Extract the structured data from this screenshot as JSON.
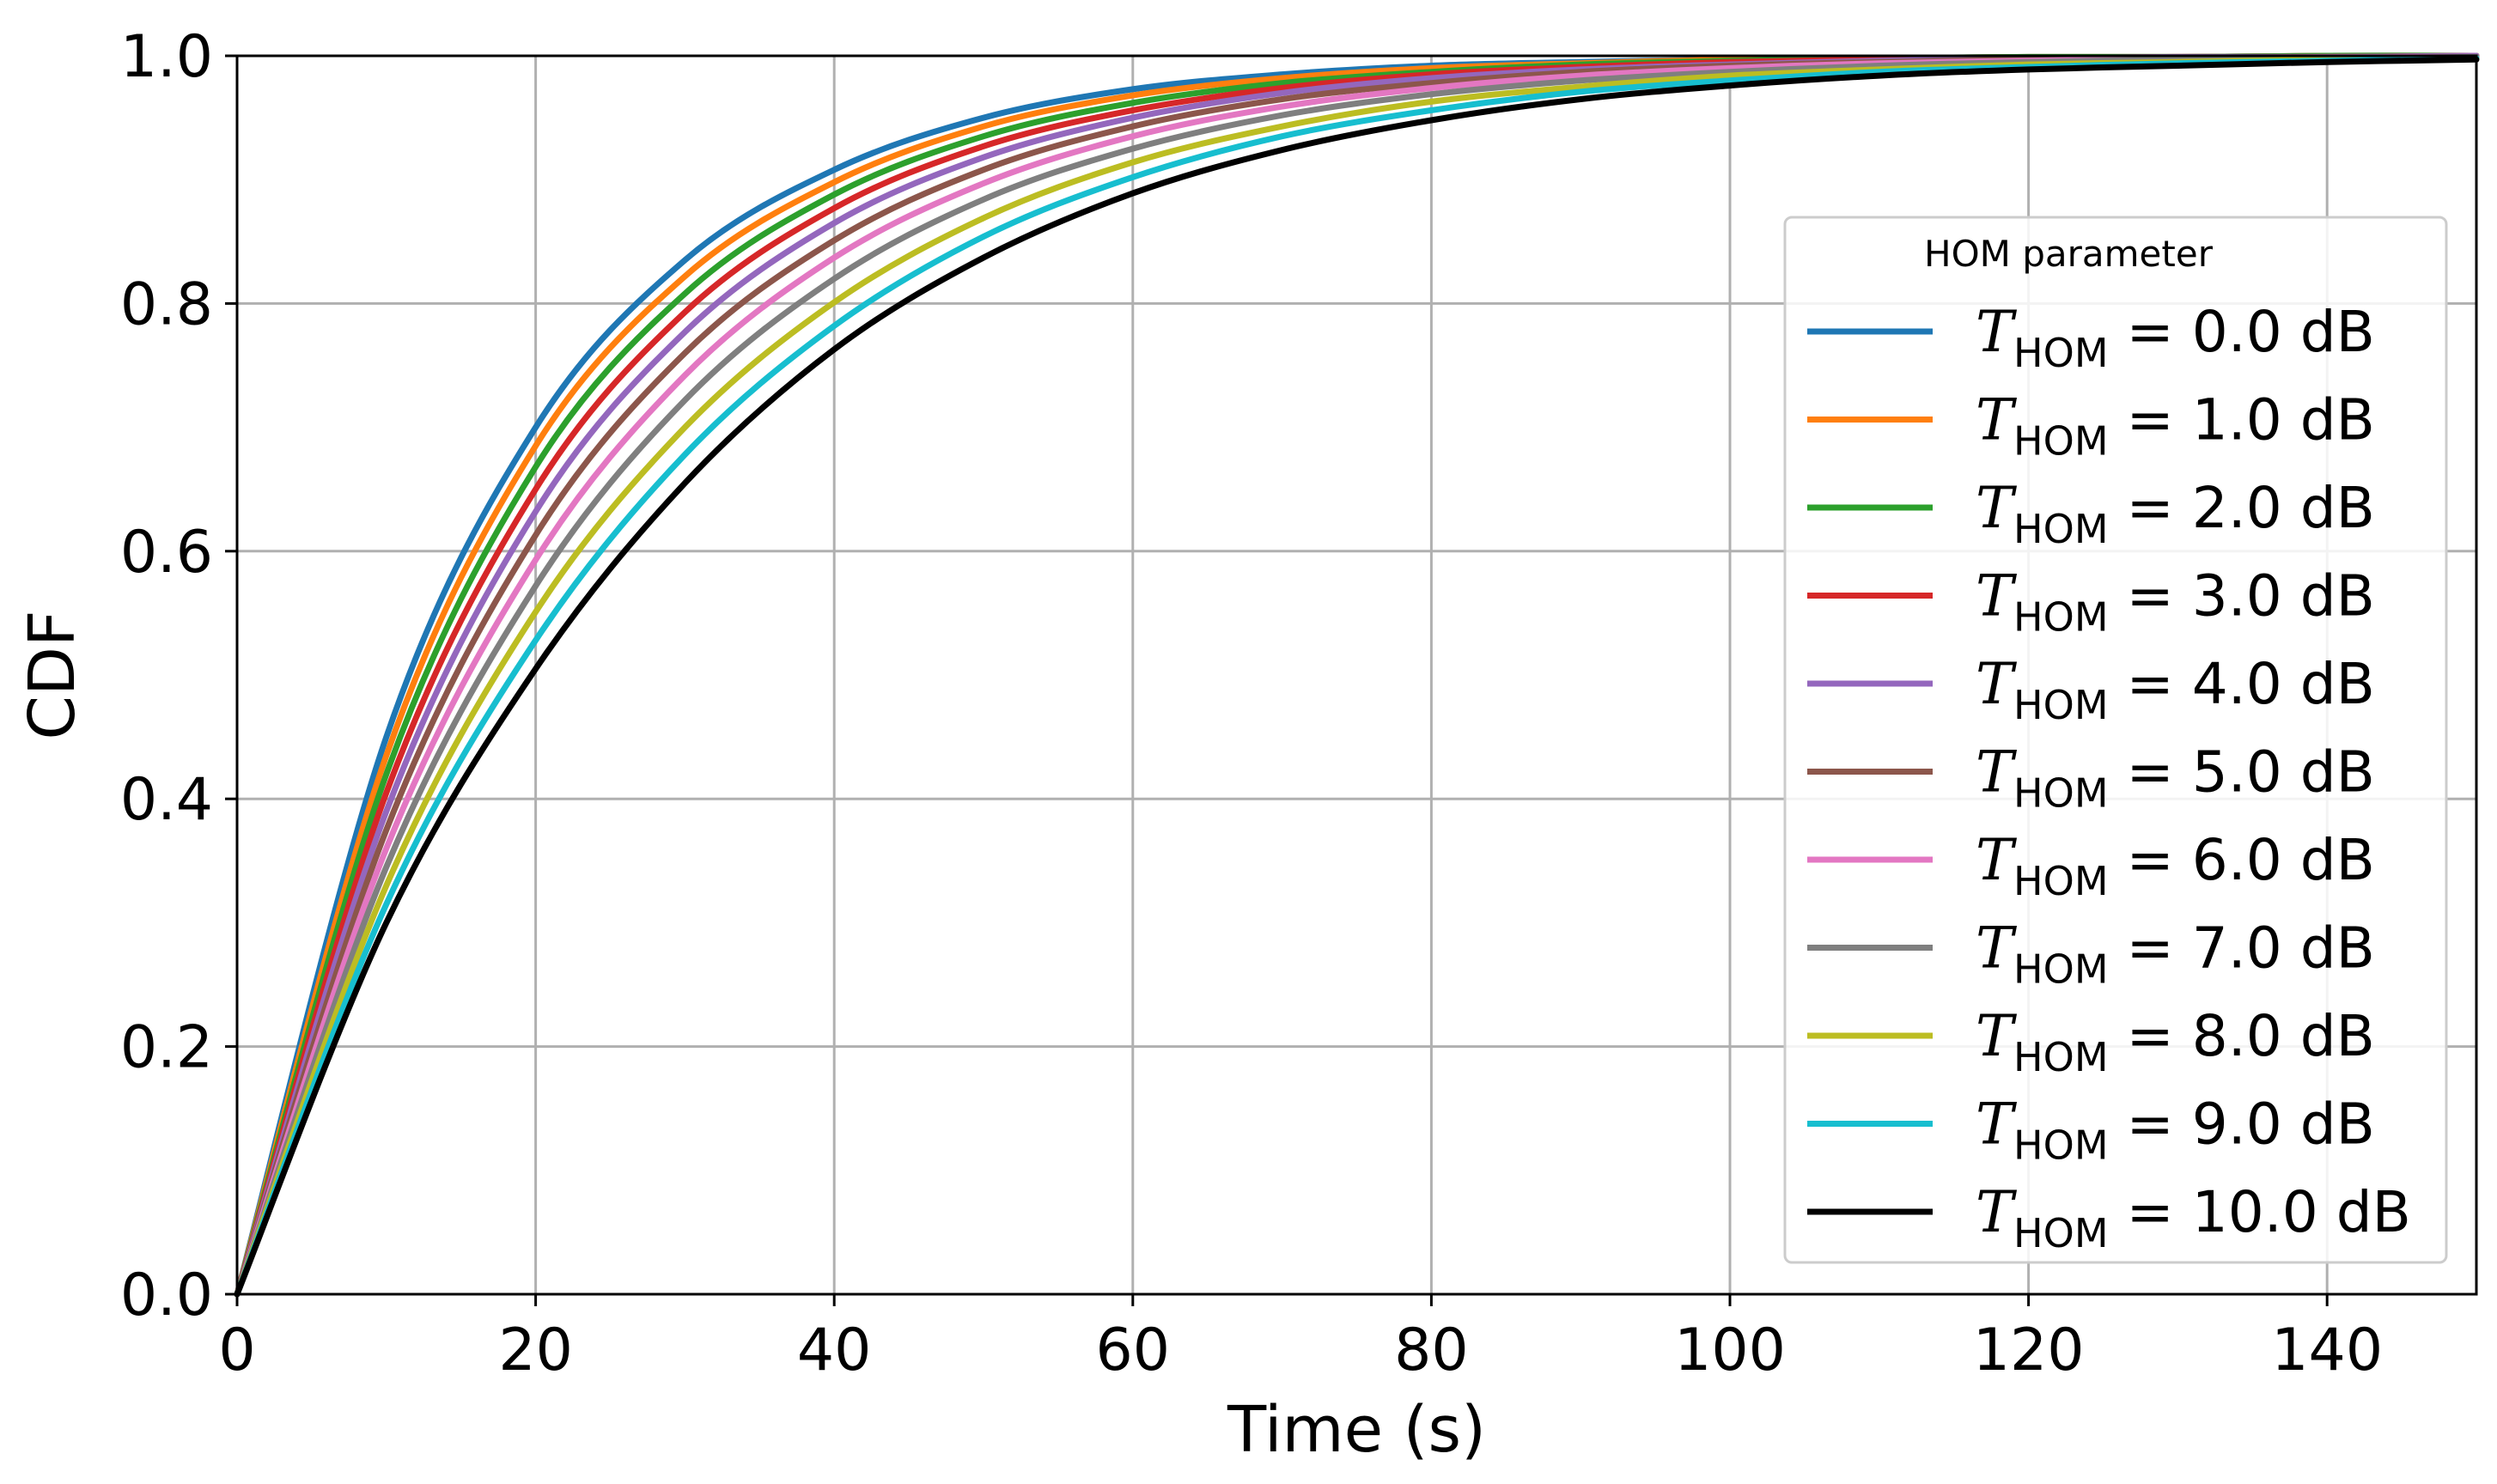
{
  "chart_data": {
    "type": "line",
    "title": "",
    "xlabel": "Time (s)",
    "ylabel": "CDF",
    "xlim": [
      0,
      150
    ],
    "ylim": [
      0.0,
      1.0
    ],
    "xticks": [
      0,
      20,
      40,
      60,
      80,
      100,
      120,
      140
    ],
    "yticks": [
      0.0,
      0.2,
      0.4,
      0.6,
      0.8,
      1.0
    ],
    "xtick_labels": [
      "0",
      "20",
      "40",
      "60",
      "80",
      "100",
      "120",
      "140"
    ],
    "ytick_labels": [
      "0.0",
      "0.2",
      "0.4",
      "0.6",
      "0.8",
      "1.0"
    ],
    "grid": true,
    "legend": {
      "title": "HOM parameter",
      "placement": "center-right",
      "symbol": "T",
      "subscript": "HOM",
      "unit": "dB"
    },
    "x": [
      0,
      10,
      20,
      30,
      40,
      50,
      60,
      70,
      80,
      90,
      100,
      110,
      120,
      130,
      140,
      150
    ],
    "series": [
      {
        "name": "T_HOM = 0.0 dB",
        "value_label": "0.0",
        "color": "#1f77b4",
        "values": [
          0.0,
          0.45,
          0.7,
          0.835,
          0.908,
          0.95,
          0.973,
          0.985,
          0.992,
          0.995,
          0.997,
          0.998,
          0.999,
          0.999,
          1.0,
          1.0
        ]
      },
      {
        "name": "T_HOM = 1.0 dB",
        "value_label": "1.0",
        "color": "#ff7f0e",
        "values": [
          0.0,
          0.435,
          0.685,
          0.822,
          0.898,
          0.943,
          0.968,
          0.982,
          0.99,
          0.994,
          0.997,
          0.998,
          0.999,
          0.999,
          1.0,
          1.0
        ]
      },
      {
        "name": "T_HOM = 2.0 dB",
        "value_label": "2.0",
        "color": "#2ca02c",
        "values": [
          0.0,
          0.42,
          0.668,
          0.808,
          0.888,
          0.935,
          0.962,
          0.978,
          0.987,
          0.993,
          0.996,
          0.998,
          0.999,
          0.999,
          1.0,
          1.0
        ]
      },
      {
        "name": "T_HOM = 3.0 dB",
        "value_label": "3.0",
        "color": "#d62728",
        "values": [
          0.0,
          0.405,
          0.65,
          0.793,
          0.877,
          0.927,
          0.956,
          0.974,
          0.985,
          0.991,
          0.995,
          0.997,
          0.998,
          0.999,
          0.999,
          1.0
        ]
      },
      {
        "name": "T_HOM = 4.0 dB",
        "value_label": "4.0",
        "color": "#9467bd",
        "values": [
          0.0,
          0.39,
          0.632,
          0.777,
          0.865,
          0.918,
          0.95,
          0.97,
          0.982,
          0.989,
          0.993,
          0.996,
          0.998,
          0.999,
          0.999,
          1.0
        ]
      },
      {
        "name": "T_HOM = 5.0 dB",
        "value_label": "5.0",
        "color": "#8c564b",
        "values": [
          0.0,
          0.375,
          0.613,
          0.76,
          0.851,
          0.908,
          0.943,
          0.965,
          0.978,
          0.987,
          0.992,
          0.995,
          0.997,
          0.998,
          0.999,
          0.999
        ]
      },
      {
        "name": "T_HOM = 6.0 dB",
        "value_label": "6.0",
        "color": "#e377c2",
        "values": [
          0.0,
          0.36,
          0.593,
          0.742,
          0.837,
          0.897,
          0.935,
          0.959,
          0.974,
          0.984,
          0.99,
          0.994,
          0.996,
          0.998,
          0.999,
          0.999
        ]
      },
      {
        "name": "T_HOM = 7.0 dB",
        "value_label": "7.0",
        "color": "#7f7f7f",
        "values": [
          0.0,
          0.345,
          0.572,
          0.722,
          0.82,
          0.884,
          0.925,
          0.952,
          0.969,
          0.98,
          0.987,
          0.992,
          0.995,
          0.997,
          0.998,
          0.999
        ]
      },
      {
        "name": "T_HOM = 8.0 dB",
        "value_label": "8.0",
        "color": "#bcbd22",
        "values": [
          0.0,
          0.33,
          0.551,
          0.7,
          0.801,
          0.869,
          0.914,
          0.943,
          0.963,
          0.975,
          0.984,
          0.989,
          0.993,
          0.995,
          0.997,
          0.998
        ]
      },
      {
        "name": "T_HOM = 9.0 dB",
        "value_label": "9.0",
        "color": "#17becf",
        "values": [
          0.0,
          0.315,
          0.528,
          0.678,
          0.782,
          0.854,
          0.902,
          0.935,
          0.956,
          0.971,
          0.98,
          0.987,
          0.991,
          0.994,
          0.996,
          0.998
        ]
      },
      {
        "name": "T_HOM = 10.0 dB",
        "value_label": "10.0",
        "color": "#000000",
        "values": [
          0.0,
          0.3,
          0.505,
          0.655,
          0.763,
          0.837,
          0.889,
          0.924,
          0.948,
          0.965,
          0.976,
          0.984,
          0.989,
          0.992,
          0.995,
          0.997
        ]
      }
    ]
  }
}
